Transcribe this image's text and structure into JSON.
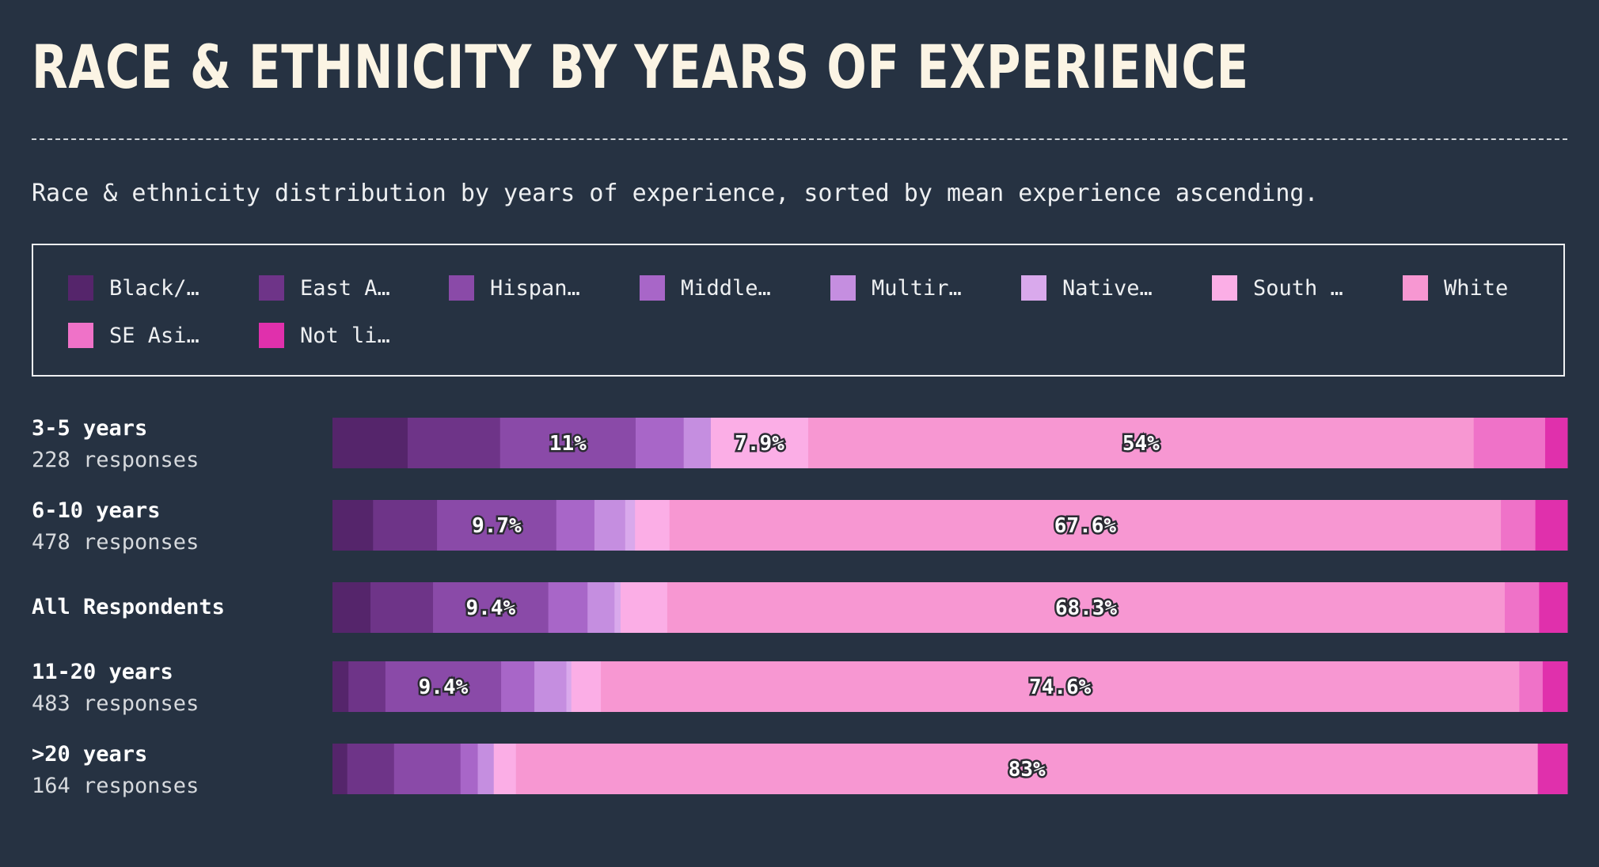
{
  "title": "RACE & ETHNICITY BY YEARS OF EXPERIENCE",
  "subtitle": "Race & ethnicity distribution by years of experience, sorted by mean experience ascending.",
  "legend": [
    {
      "label": "Black/…",
      "color": "#55256b"
    },
    {
      "label": "East A…",
      "color": "#6e3488"
    },
    {
      "label": "Hispan…",
      "color": "#8a4aa8"
    },
    {
      "label": "Middle…",
      "color": "#a866c8"
    },
    {
      "label": "Multir…",
      "color": "#c58ee0"
    },
    {
      "label": "Native…",
      "color": "#d9a9ec"
    },
    {
      "label": "South …",
      "color": "#fbaee6"
    },
    {
      "label": "White",
      "color": "#f797d2"
    },
    {
      "label": "SE Asi…",
      "color": "#ef72c8"
    },
    {
      "label": "Not li…",
      "color": "#e030ac"
    }
  ],
  "chart_data": {
    "type": "bar",
    "orientation": "horizontal",
    "stacked": true,
    "normalized": true,
    "unit": "%",
    "categories": [
      "3-5 years",
      "6-10 years",
      "All Respondents",
      "11-20 years",
      ">20 years"
    ],
    "responses": [
      "228 responses",
      "478 responses",
      "",
      "483 responses",
      "164 responses"
    ],
    "series": [
      {
        "name": "Black/…",
        "values": [
          6.1,
          3.3,
          3.1,
          1.3,
          1.2
        ]
      },
      {
        "name": "East A…",
        "values": [
          7.5,
          5.2,
          5.1,
          3.0,
          3.8
        ]
      },
      {
        "name": "Hispan…",
        "values": [
          11,
          9.7,
          9.4,
          9.4,
          5.4
        ]
      },
      {
        "name": "Middle…",
        "values": [
          3.9,
          3.1,
          3.2,
          2.7,
          1.4
        ]
      },
      {
        "name": "Multir…",
        "values": [
          2.2,
          2.5,
          2.2,
          2.6,
          1.3
        ]
      },
      {
        "name": "Native…",
        "values": [
          0,
          0.8,
          0.5,
          0.4,
          0
        ]
      },
      {
        "name": "South …",
        "values": [
          7.9,
          2.8,
          3.8,
          2.4,
          1.8
        ]
      },
      {
        "name": "White",
        "values": [
          54,
          67.6,
          68.3,
          74.6,
          83
        ]
      },
      {
        "name": "SE Asi…",
        "values": [
          5.8,
          2.8,
          2.8,
          1.9,
          0
        ]
      },
      {
        "name": "Not li…",
        "values": [
          1.8,
          2.6,
          2.3,
          2.0,
          2.4
        ]
      }
    ],
    "data_labels": [
      [
        null,
        null,
        "11%",
        null,
        null,
        null,
        "7.9%",
        "54%",
        null,
        null
      ],
      [
        null,
        null,
        "9.7%",
        null,
        null,
        null,
        null,
        "67.6%",
        null,
        null
      ],
      [
        null,
        null,
        "9.4%",
        null,
        null,
        null,
        null,
        "68.3%",
        null,
        null
      ],
      [
        null,
        null,
        "9.4%",
        null,
        null,
        null,
        null,
        "74.6%",
        null,
        null
      ],
      [
        null,
        null,
        null,
        null,
        null,
        null,
        null,
        "83%",
        null,
        null
      ]
    ],
    "xlim": [
      0,
      100
    ]
  }
}
